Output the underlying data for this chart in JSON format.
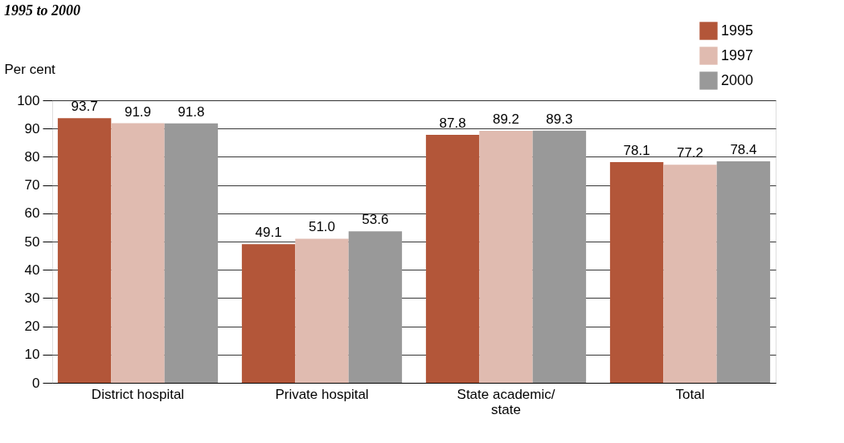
{
  "chart_data": {
    "type": "bar",
    "title": "1995 to 2000",
    "ylabel": "Per cent",
    "categories": [
      "District hospital",
      "Private hospital",
      "State academic/\nstate",
      "Total"
    ],
    "series": [
      {
        "name": "1995",
        "color": "#b35639",
        "values": [
          93.7,
          49.1,
          87.8,
          78.1
        ],
        "value_labels": [
          "93.7",
          "49.1",
          "87.8",
          "78.1"
        ]
      },
      {
        "name": "1997",
        "color": "#e0bbb0",
        "values": [
          91.9,
          51.0,
          89.2,
          77.2
        ],
        "value_labels": [
          "91.9",
          "51.0",
          "89.2",
          "77.2"
        ]
      },
      {
        "name": "2000",
        "color": "#999999",
        "values": [
          91.8,
          53.6,
          89.3,
          78.4
        ],
        "value_labels": [
          "91.8",
          "53.6",
          "89.3",
          "78.4"
        ]
      }
    ],
    "ylim": [
      0,
      100
    ],
    "yticks": [
      0,
      10,
      20,
      30,
      40,
      50,
      60,
      70,
      80,
      90,
      100
    ],
    "grid": "y",
    "legend": "top right"
  }
}
